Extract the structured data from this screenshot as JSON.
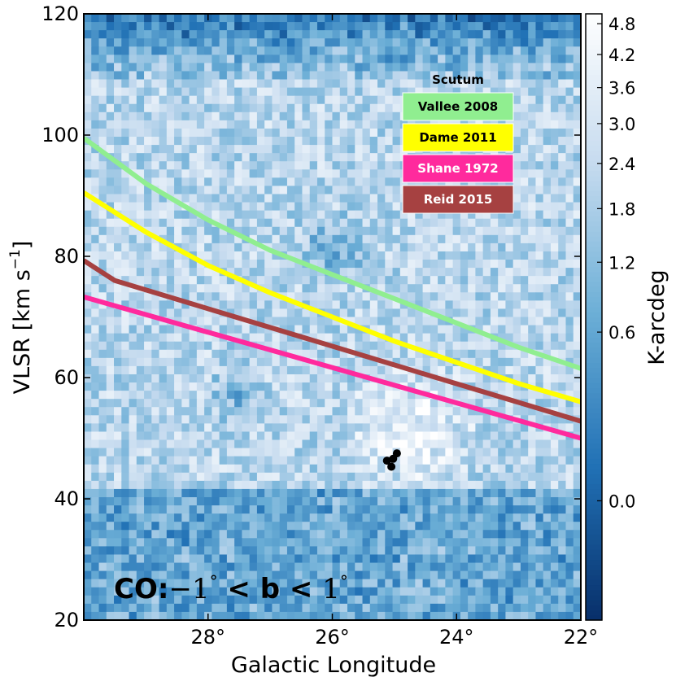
{
  "chart_data": {
    "type": "heatmap",
    "xlabel": "Galactic Longitude",
    "ylabel": "VLSR [km s",
    "ylabel_sup": "−1",
    "ylabel_end": "]",
    "xlim": [
      30,
      22
    ],
    "ylim": [
      20,
      120
    ],
    "x_ticks": [
      {
        "value": 28,
        "label": "28°"
      },
      {
        "value": 26,
        "label": "26°"
      },
      {
        "value": 24,
        "label": "24°"
      },
      {
        "value": 22,
        "label": "22°"
      }
    ],
    "y_ticks": [
      {
        "value": 20,
        "label": "20"
      },
      {
        "value": 40,
        "label": "40"
      },
      {
        "value": 60,
        "label": "60"
      },
      {
        "value": 80,
        "label": "80"
      },
      {
        "value": 100,
        "label": "100"
      },
      {
        "value": 120,
        "label": "120"
      }
    ],
    "colorbar": {
      "label": "K-arcdeg",
      "scale": "sqrt",
      "range": [
        -0.3,
        5.0
      ],
      "ticks": [
        {
          "value": 0.0,
          "label": "0.0"
        },
        {
          "value": 0.6,
          "label": "0.6"
        },
        {
          "value": 1.2,
          "label": "1.2"
        },
        {
          "value": 1.8,
          "label": "1.8"
        },
        {
          "value": 2.4,
          "label": "2.4"
        },
        {
          "value": 3.0,
          "label": "3.0"
        },
        {
          "value": 3.6,
          "label": "3.6"
        },
        {
          "value": 4.2,
          "label": "4.2"
        },
        {
          "value": 4.8,
          "label": "4.8"
        }
      ],
      "colors": [
        "#08306b",
        "#2171b5",
        "#6baed6",
        "#c6dbef",
        "#ffffff"
      ]
    },
    "legend_title": "Scutum",
    "legend_position": "upper-right",
    "series": [
      {
        "name": "Vallee 2008",
        "color": "#90ee90",
        "text_color": "#000000",
        "x": [
          30,
          29,
          28,
          27,
          26,
          25,
          24,
          23,
          22
        ],
        "y": [
          99.5,
          92,
          86,
          81,
          77,
          73,
          69,
          65,
          61.5
        ]
      },
      {
        "name": "Dame 2011",
        "color": "#ffff00",
        "text_color": "#000000",
        "x": [
          30,
          29,
          28,
          27,
          26,
          25,
          24,
          23,
          22
        ],
        "y": [
          90.5,
          84,
          78.5,
          74,
          70,
          66,
          62.5,
          59,
          56
        ]
      },
      {
        "name": "Shane 1972",
        "color": "#ff2a9d",
        "text_color": "#ffffff",
        "x": [
          30,
          22
        ],
        "y": [
          73.3,
          50
        ]
      },
      {
        "name": "Reid 2015",
        "color": "#a64141",
        "text_color": "#ffffff",
        "x": [
          30,
          29.5,
          22
        ],
        "y": [
          79.3,
          76,
          52.8
        ]
      }
    ],
    "masers": {
      "color": "#000000",
      "points": [
        {
          "x": 25.12,
          "y": 46.3
        },
        {
          "x": 25.02,
          "y": 46.6
        },
        {
          "x": 24.96,
          "y": 47.5
        },
        {
          "x": 25.05,
          "y": 45.3
        }
      ]
    },
    "annotation": {
      "prefix": "CO:",
      "neg": "−1",
      "deg": "°",
      "mid": " < b < ",
      "pos": "1"
    }
  }
}
